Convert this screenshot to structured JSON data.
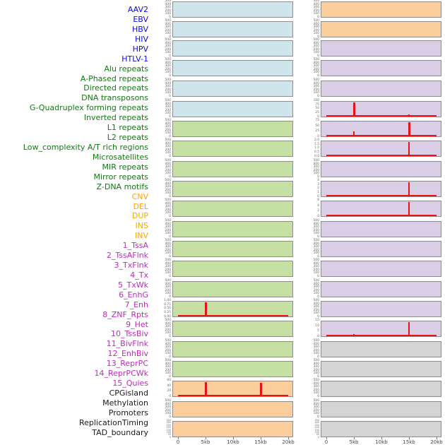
{
  "figure": {
    "title": "",
    "palette": {
      "label_colors": {
        "blue": "#0a0ae0",
        "green": "#137813",
        "orange": "#f6a800",
        "purple": "#bb2cbb",
        "black": "#1a1a1a"
      },
      "fill_colors": {
        "blue": "#cfe5ec",
        "green": "#c5e0a2",
        "orange": "#fbce9b",
        "purple": "#d9cee6",
        "gray": "#d4d4d4"
      },
      "spike_color": "#e81414",
      "border_color": "#8c8c8c",
      "tick_color": "#666666",
      "axis_label_color": "#444444"
    },
    "row_labels": [
      {
        "text": "AAV2",
        "color": "blue"
      },
      {
        "text": "EBV",
        "color": "blue"
      },
      {
        "text": "HBV",
        "color": "blue"
      },
      {
        "text": "HIV",
        "color": "blue"
      },
      {
        "text": "HPV",
        "color": "blue"
      },
      {
        "text": "HTLV-1",
        "color": "blue"
      },
      {
        "text": "Alu repeats",
        "color": "green"
      },
      {
        "text": "A-Phased repeats",
        "color": "green"
      },
      {
        "text": "Directed repeats",
        "color": "green"
      },
      {
        "text": "DNA transposons",
        "color": "green"
      },
      {
        "text": "G-Quadruplex forming repeats",
        "color": "green"
      },
      {
        "text": "Inverted repeats",
        "color": "green"
      },
      {
        "text": "L1 repeats",
        "color": "green"
      },
      {
        "text": "L2 repeats",
        "color": "green"
      },
      {
        "text": "Low_complexity A/T rich regions",
        "color": "green"
      },
      {
        "text": "Microsatellites",
        "color": "green"
      },
      {
        "text": "MIR repeats",
        "color": "green"
      },
      {
        "text": "Mirror repeats",
        "color": "green"
      },
      {
        "text": "Z-DNA motifs",
        "color": "green"
      },
      {
        "text": "CNV",
        "color": "orange"
      },
      {
        "text": "DEL",
        "color": "orange"
      },
      {
        "text": "DUP",
        "color": "orange"
      },
      {
        "text": "INS",
        "color": "orange"
      },
      {
        "text": "INV",
        "color": "orange"
      },
      {
        "text": "1_TssA",
        "color": "purple"
      },
      {
        "text": "2_TssAFlnk",
        "color": "purple"
      },
      {
        "text": "3_TxFlnk",
        "color": "purple"
      },
      {
        "text": "4_Tx",
        "color": "purple"
      },
      {
        "text": "5_TxWk",
        "color": "purple"
      },
      {
        "text": "6_EnhG",
        "color": "purple"
      },
      {
        "text": "7_Enh",
        "color": "purple"
      },
      {
        "text": "8_ZNF_Rpts",
        "color": "purple"
      },
      {
        "text": "9_Het",
        "color": "purple"
      },
      {
        "text": "10_TssBiv",
        "color": "purple"
      },
      {
        "text": "11_BivFlnk",
        "color": "purple"
      },
      {
        "text": "12_EnhBiv",
        "color": "purple"
      },
      {
        "text": "13_ReprPC",
        "color": "purple"
      },
      {
        "text": "14_ReprPCWk",
        "color": "purple"
      },
      {
        "text": "15_Quies",
        "color": "purple"
      },
      {
        "text": "CPGisland",
        "color": "black"
      },
      {
        "text": "Methylation",
        "color": "black"
      },
      {
        "text": "Promoters",
        "color": "black"
      },
      {
        "text": "ReplicationTiming",
        "color": "black"
      },
      {
        "text": "TAD_boundary",
        "color": "black"
      }
    ]
  },
  "chart_data": {
    "type": "bar",
    "description": "44 genomic feature tracks in two columns of 22 stacked mini-axes; red baseline with spikes at 5kb and 15kb on some tracks",
    "x_axis": {
      "tick_labels": [
        "0",
        "5kb",
        "10kb",
        "15kb",
        "20kb"
      ],
      "tick_kb": [
        0,
        5,
        10,
        15,
        20
      ],
      "range_kb": [
        0,
        20
      ]
    },
    "columns": [
      {
        "name": "left",
        "panels": [
          {
            "fill": "blue",
            "yticks": [
              "500",
              "400",
              "300",
              "200",
              "100",
              "0"
            ],
            "baseline": false,
            "spikes": []
          },
          {
            "fill": "blue",
            "yticks": [
              "500",
              "400",
              "300",
              "200",
              "100",
              "0"
            ],
            "baseline": false,
            "spikes": []
          },
          {
            "fill": "blue",
            "yticks": [
              "500",
              "400",
              "300",
              "200",
              "100",
              "0"
            ],
            "baseline": false,
            "spikes": []
          },
          {
            "fill": "blue",
            "yticks": [
              "500",
              "400",
              "300",
              "200",
              "100",
              "0"
            ],
            "baseline": false,
            "spikes": []
          },
          {
            "fill": "blue",
            "yticks": [
              "500",
              "400",
              "300",
              "200",
              "100",
              "0"
            ],
            "baseline": false,
            "spikes": []
          },
          {
            "fill": "blue",
            "yticks": [
              "500",
              "400",
              "300",
              "200",
              "100",
              "0"
            ],
            "baseline": false,
            "spikes": []
          },
          {
            "fill": "green",
            "yticks": [
              "500",
              "400",
              "300",
              "200",
              "100",
              "0"
            ],
            "baseline": false,
            "spikes": []
          },
          {
            "fill": "green",
            "yticks": [
              "500",
              "400",
              "300",
              "200",
              "100",
              "0"
            ],
            "baseline": false,
            "spikes": []
          },
          {
            "fill": "green",
            "yticks": [
              "500",
              "400",
              "300",
              "200",
              "100",
              "0"
            ],
            "baseline": false,
            "spikes": []
          },
          {
            "fill": "green",
            "yticks": [
              "500",
              "400",
              "300",
              "200",
              "100",
              "0"
            ],
            "baseline": false,
            "spikes": []
          },
          {
            "fill": "green",
            "yticks": [
              "500",
              "400",
              "300",
              "200",
              "100",
              "0"
            ],
            "baseline": false,
            "spikes": []
          },
          {
            "fill": "green",
            "yticks": [
              "500",
              "400",
              "300",
              "200",
              "100",
              "0"
            ],
            "baseline": false,
            "spikes": []
          },
          {
            "fill": "green",
            "yticks": [
              "500",
              "400",
              "300",
              "200",
              "100",
              "0"
            ],
            "baseline": false,
            "spikes": []
          },
          {
            "fill": "green",
            "yticks": [
              "500",
              "400",
              "300",
              "200",
              "100",
              "0"
            ],
            "baseline": false,
            "spikes": []
          },
          {
            "fill": "green",
            "yticks": [
              "500",
              "400",
              "300",
              "200",
              "100",
              "0"
            ],
            "baseline": false,
            "spikes": []
          },
          {
            "fill": "green",
            "yticks": [
              "1.00",
              "0.75",
              "0.50",
              "0.25",
              "0.00"
            ],
            "baseline": true,
            "spikes": [
              {
                "kb": 5,
                "frac": 1.0,
                "w": 3
              }
            ]
          },
          {
            "fill": "green",
            "yticks": [
              "500",
              "400",
              "300",
              "200",
              "100",
              "0"
            ],
            "baseline": false,
            "spikes": []
          },
          {
            "fill": "green",
            "yticks": [
              "500",
              "400",
              "300",
              "200",
              "100",
              "0"
            ],
            "baseline": false,
            "spikes": []
          },
          {
            "fill": "green",
            "yticks": [
              "500",
              "400",
              "300",
              "200",
              "100",
              "0"
            ],
            "baseline": false,
            "spikes": []
          },
          {
            "fill": "orange",
            "yticks": [
              "60",
              "40",
              "20",
              "0"
            ],
            "baseline": true,
            "spikes": [
              {
                "kb": 5,
                "frac": 1.0,
                "w": 3
              },
              {
                "kb": 15,
                "frac": 0.93,
                "w": 3
              }
            ]
          },
          {
            "fill": "orange",
            "yticks": [
              "500",
              "400",
              "300",
              "200",
              "100",
              "0"
            ],
            "baseline": false,
            "spikes": []
          },
          {
            "fill": "orange",
            "yticks": [
              "350",
              "300",
              "250",
              "200",
              "150",
              "100",
              "50",
              "0"
            ],
            "baseline": false,
            "spikes": []
          }
        ]
      },
      {
        "name": "right",
        "panels": [
          {
            "fill": "orange",
            "yticks": [
              "500",
              "400",
              "300",
              "200",
              "100",
              "0"
            ],
            "baseline": false,
            "spikes": []
          },
          {
            "fill": "orange",
            "yticks": [
              "500",
              "400",
              "300",
              "200",
              "100",
              "0"
            ],
            "baseline": false,
            "spikes": []
          },
          {
            "fill": "purple",
            "yticks": [
              "500",
              "400",
              "300",
              "200",
              "100",
              "0"
            ],
            "baseline": false,
            "spikes": []
          },
          {
            "fill": "purple",
            "yticks": [
              "500",
              "400",
              "300",
              "200",
              "100",
              "0"
            ],
            "baseline": false,
            "spikes": []
          },
          {
            "fill": "purple",
            "yticks": [
              "500",
              "400",
              "300",
              "200",
              "100",
              "0"
            ],
            "baseline": false,
            "spikes": []
          },
          {
            "fill": "purple",
            "yticks": [
              "100",
              "75",
              "50",
              "25",
              "0"
            ],
            "baseline": true,
            "spikes": [
              {
                "kb": 5,
                "frac": 1.0,
                "w": 3
              },
              {
                "kb": 15,
                "frac": 0.13,
                "w": 2
              }
            ]
          },
          {
            "fill": "purple",
            "yticks": [
              "75",
              "50",
              "25",
              "0"
            ],
            "baseline": true,
            "spikes": [
              {
                "kb": 5,
                "frac": 0.3,
                "w": 2
              },
              {
                "kb": 15,
                "frac": 1.0,
                "w": 3
              }
            ]
          },
          {
            "fill": "purple",
            "yticks": [
              "2.0",
              "1.5",
              "1.0",
              "0.5",
              "0.0"
            ],
            "baseline": true,
            "spikes": [
              {
                "kb": 15,
                "frac": 1.0,
                "w": 2
              }
            ]
          },
          {
            "fill": "purple",
            "yticks": [
              "500",
              "400",
              "300",
              "200",
              "100",
              "0"
            ],
            "baseline": false,
            "spikes": []
          },
          {
            "fill": "purple",
            "yticks": [
              "4",
              "3",
              "2",
              "1",
              "0"
            ],
            "baseline": true,
            "spikes": [
              {
                "kb": 15,
                "frac": 1.0,
                "w": 2
              }
            ]
          },
          {
            "fill": "purple",
            "yticks": [
              "6",
              "4",
              "2",
              "0"
            ],
            "baseline": true,
            "spikes": [
              {
                "kb": 15,
                "frac": 1.0,
                "w": 2
              }
            ]
          },
          {
            "fill": "purple",
            "yticks": [
              "500",
              "400",
              "300",
              "200",
              "100",
              "0"
            ],
            "baseline": false,
            "spikes": []
          },
          {
            "fill": "purple",
            "yticks": [
              "500",
              "400",
              "300",
              "200",
              "100",
              "0"
            ],
            "baseline": false,
            "spikes": []
          },
          {
            "fill": "purple",
            "yticks": [
              "500",
              "400",
              "300",
              "200",
              "100",
              "0"
            ],
            "baseline": false,
            "spikes": []
          },
          {
            "fill": "purple",
            "yticks": [
              "500",
              "400",
              "300",
              "200",
              "100",
              "0"
            ],
            "baseline": false,
            "spikes": []
          },
          {
            "fill": "purple",
            "yticks": [
              "500",
              "400",
              "300",
              "200",
              "100",
              "0"
            ],
            "baseline": false,
            "spikes": []
          },
          {
            "fill": "purple",
            "yticks": [
              "15",
              "10",
              "5",
              "0"
            ],
            "baseline": true,
            "spikes": [
              {
                "kb": 5,
                "frac": 0.08,
                "w": 2
              },
              {
                "kb": 15,
                "frac": 1.0,
                "w": 2
              }
            ]
          },
          {
            "fill": "gray",
            "yticks": [
              "500",
              "400",
              "300",
              "200",
              "100",
              "0"
            ],
            "baseline": false,
            "spikes": []
          },
          {
            "fill": "gray",
            "yticks": [
              "500",
              "400",
              "300",
              "200",
              "100",
              "0"
            ],
            "baseline": false,
            "spikes": []
          },
          {
            "fill": "gray",
            "yticks": [
              "500",
              "400",
              "300",
              "200",
              "100",
              "0"
            ],
            "baseline": false,
            "spikes": []
          },
          {
            "fill": "gray",
            "yticks": [
              "500",
              "400",
              "300",
              "200",
              "100",
              "0"
            ],
            "baseline": false,
            "spikes": []
          },
          {
            "fill": "gray",
            "yticks": [
              "350",
              "300",
              "250",
              "200",
              "150",
              "100",
              "50",
              "0"
            ],
            "baseline": false,
            "spikes": []
          }
        ]
      }
    ]
  }
}
